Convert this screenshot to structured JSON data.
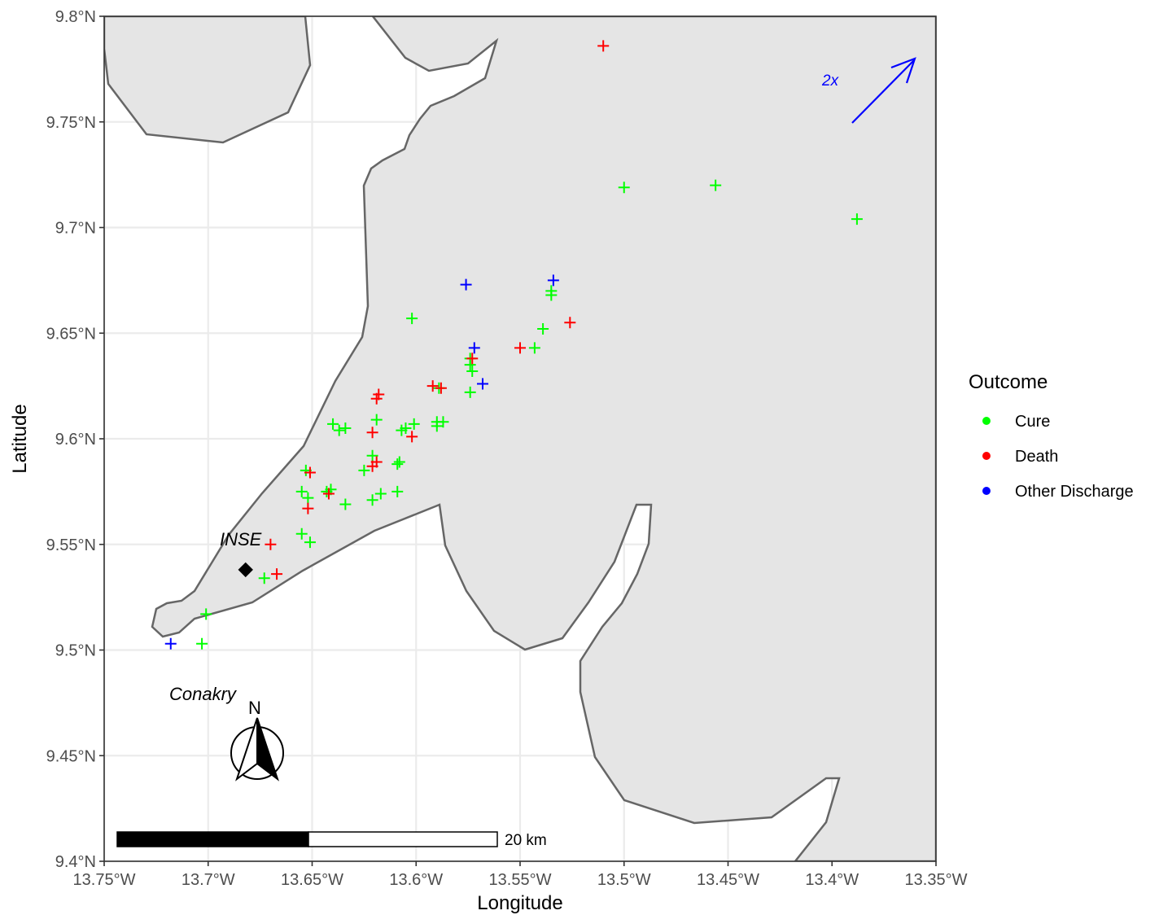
{
  "chart_data": {
    "type": "scatter",
    "xlabel": "Longitude",
    "ylabel": "Latitude",
    "xlim": [
      -13.75,
      -13.35
    ],
    "ylim": [
      9.4,
      9.8
    ],
    "grid": true,
    "x_ticks": [
      {
        "value": -13.75,
        "label": "13.75°W"
      },
      {
        "value": -13.7,
        "label": "13.7°W"
      },
      {
        "value": -13.65,
        "label": "13.65°W"
      },
      {
        "value": -13.6,
        "label": "13.6°W"
      },
      {
        "value": -13.55,
        "label": "13.55°W"
      },
      {
        "value": -13.5,
        "label": "13.5°W"
      },
      {
        "value": -13.45,
        "label": "13.45°W"
      },
      {
        "value": -13.4,
        "label": "13.4°W"
      },
      {
        "value": -13.35,
        "label": "13.35°W"
      }
    ],
    "y_ticks": [
      {
        "value": 9.4,
        "label": "9.4°N"
      },
      {
        "value": 9.45,
        "label": "9.45°N"
      },
      {
        "value": 9.5,
        "label": "9.5°N"
      },
      {
        "value": 9.55,
        "label": "9.55°N"
      },
      {
        "value": 9.6,
        "label": "9.6°N"
      },
      {
        "value": 9.65,
        "label": "9.65°N"
      },
      {
        "value": 9.7,
        "label": "9.7°N"
      },
      {
        "value": 9.75,
        "label": "9.75°N"
      },
      {
        "value": 9.8,
        "label": "9.8°N"
      }
    ],
    "legend": {
      "title": "Outcome",
      "position": "right",
      "entries": [
        {
          "name": "Cure",
          "color": "#00ff00"
        },
        {
          "name": "Death",
          "color": "#ff0000"
        },
        {
          "name": "Other Discharge",
          "color": "#0000ff"
        }
      ]
    },
    "series": [
      {
        "name": "Cure",
        "color": "#00ff00",
        "points": [
          [
            -13.5,
            9.719
          ],
          [
            -13.456,
            9.72
          ],
          [
            -13.388,
            9.704
          ],
          [
            -13.535,
            9.67
          ],
          [
            -13.535,
            9.668
          ],
          [
            -13.602,
            9.657
          ],
          [
            -13.539,
            9.652
          ],
          [
            -13.543,
            9.643
          ],
          [
            -13.574,
            9.638
          ],
          [
            -13.574,
            9.635
          ],
          [
            -13.573,
            9.632
          ],
          [
            -13.574,
            9.622
          ],
          [
            -13.589,
            9.624
          ],
          [
            -13.619,
            9.609
          ],
          [
            -13.64,
            9.607
          ],
          [
            -13.634,
            9.605
          ],
          [
            -13.637,
            9.604
          ],
          [
            -13.605,
            9.605
          ],
          [
            -13.601,
            9.607
          ],
          [
            -13.607,
            9.604
          ],
          [
            -13.59,
            9.608
          ],
          [
            -13.59,
            9.606
          ],
          [
            -13.587,
            9.608
          ],
          [
            -13.621,
            9.592
          ],
          [
            -13.625,
            9.585
          ],
          [
            -13.608,
            9.589
          ],
          [
            -13.609,
            9.588
          ],
          [
            -13.653,
            9.585
          ],
          [
            -13.655,
            9.575
          ],
          [
            -13.652,
            9.572
          ],
          [
            -13.641,
            9.576
          ],
          [
            -13.643,
            9.575
          ],
          [
            -13.617,
            9.574
          ],
          [
            -13.621,
            9.571
          ],
          [
            -13.609,
            9.575
          ],
          [
            -13.634,
            9.569
          ],
          [
            -13.655,
            9.555
          ],
          [
            -13.651,
            9.551
          ],
          [
            -13.673,
            9.534
          ],
          [
            -13.701,
            9.517
          ],
          [
            -13.703,
            9.503
          ]
        ]
      },
      {
        "name": "Death",
        "color": "#ff0000",
        "points": [
          [
            -13.51,
            9.786
          ],
          [
            -13.526,
            9.655
          ],
          [
            -13.55,
            9.643
          ],
          [
            -13.573,
            9.638
          ],
          [
            -13.592,
            9.625
          ],
          [
            -13.588,
            9.624
          ],
          [
            -13.618,
            9.621
          ],
          [
            -13.619,
            9.619
          ],
          [
            -13.621,
            9.603
          ],
          [
            -13.602,
            9.601
          ],
          [
            -13.619,
            9.589
          ],
          [
            -13.621,
            9.587
          ],
          [
            -13.651,
            9.584
          ],
          [
            -13.642,
            9.574
          ],
          [
            -13.652,
            9.567
          ],
          [
            -13.67,
            9.55
          ],
          [
            -13.667,
            9.536
          ]
        ]
      },
      {
        "name": "Other Discharge",
        "color": "#0000ff",
        "points": [
          [
            -13.576,
            9.673
          ],
          [
            -13.534,
            9.675
          ],
          [
            -13.572,
            9.643
          ],
          [
            -13.568,
            9.626
          ],
          [
            -13.718,
            9.503
          ]
        ]
      }
    ]
  },
  "map_labels": {
    "inse": "INSE",
    "conakry": "Conakry",
    "arrow_label": "2x",
    "north_label": "N",
    "scale_label": "20 km"
  },
  "landmarks": {
    "inse_site": [
      -13.682,
      9.538
    ]
  },
  "colors": {
    "land": "#e5e5e5",
    "coast": "#666666",
    "grid": "#ebebeb",
    "arrow": "#0000ff"
  }
}
